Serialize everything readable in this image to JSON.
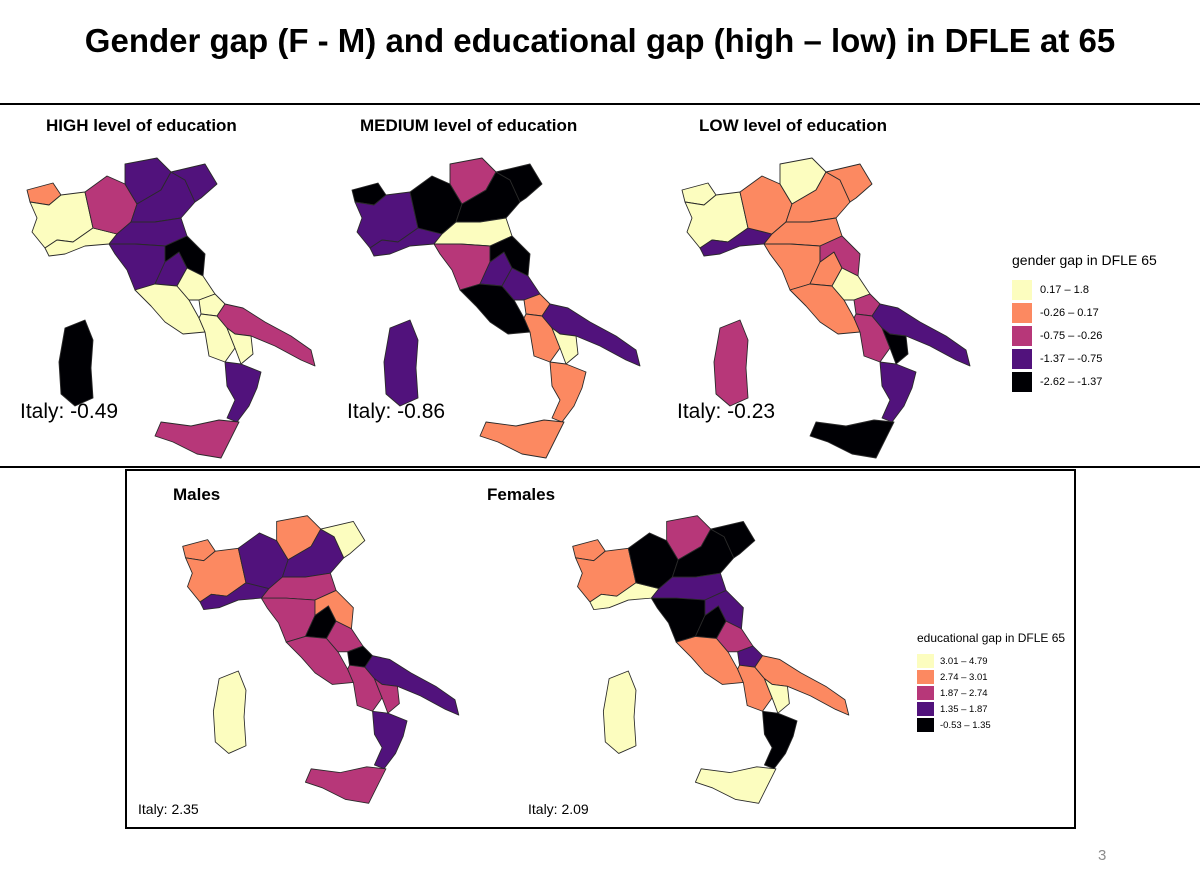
{
  "slide": {
    "title": "Gender gap (F - M) and educational gap (high – low) in DFLE at 65",
    "page_number": "3"
  },
  "colors": {
    "c1": "#fcfdbf",
    "c2": "#fc8961",
    "c3": "#b73779",
    "c4": "#51127c",
    "c5": "#000004"
  },
  "legends": {
    "gender": {
      "title": "gender gap in DFLE 65",
      "items": [
        {
          "label": "0.17 – 1.8",
          "color": "#fcfdbf"
        },
        {
          "label": "-0.26 – 0.17",
          "color": "#fc8961"
        },
        {
          "label": "-0.75 – -0.26",
          "color": "#b73779"
        },
        {
          "label": "-1.37 – -0.75",
          "color": "#51127c"
        },
        {
          "label": "-2.62 – -1.37",
          "color": "#000004"
        }
      ]
    },
    "education": {
      "title": "educational gap in DFLE 65",
      "items": [
        {
          "label": "3.01 – 4.79",
          "color": "#fcfdbf"
        },
        {
          "label": "2.74 – 3.01",
          "color": "#fc8961"
        },
        {
          "label": "1.87 – 2.74",
          "color": "#b73779"
        },
        {
          "label": "1.35 – 1.87",
          "color": "#51127c"
        },
        {
          "label": "-0.53 – 1.35",
          "color": "#000004"
        }
      ]
    }
  },
  "maps": [
    {
      "title": "HIGH level of education",
      "italy": "Italy: -0.49",
      "legend": "gender",
      "regions": {
        "valle": "c2",
        "piemonte": "c1",
        "liguria": "c1",
        "lombardia": "c3",
        "trentino": "c4",
        "veneto": "c4",
        "friuli": "c4",
        "emilia": "c4",
        "toscana": "c4",
        "umbria": "c4",
        "marche": "c5",
        "lazio": "c1",
        "abruzzo": "c1",
        "molise": "c1",
        "campania": "c1",
        "puglia": "c3",
        "basilicata": "c1",
        "calabria": "c4",
        "sicilia": "c3",
        "sardegna": "c5"
      }
    },
    {
      "title": "MEDIUM level of education",
      "italy": "Italy: -0.86",
      "legend": "gender",
      "regions": {
        "valle": "c5",
        "piemonte": "c4",
        "liguria": "c4",
        "lombardia": "c5",
        "trentino": "c3",
        "veneto": "c5",
        "friuli": "c5",
        "emilia": "c1",
        "toscana": "c3",
        "umbria": "c4",
        "marche": "c5",
        "lazio": "c5",
        "abruzzo": "c4",
        "molise": "c2",
        "campania": "c2",
        "puglia": "c4",
        "basilicata": "c1",
        "calabria": "c2",
        "sicilia": "c2",
        "sardegna": "c4"
      }
    },
    {
      "title": "LOW level of education",
      "italy": "Italy: -0.23",
      "legend": "gender",
      "regions": {
        "valle": "c1",
        "piemonte": "c1",
        "liguria": "c4",
        "lombardia": "c2",
        "trentino": "c1",
        "veneto": "c2",
        "friuli": "c2",
        "emilia": "c2",
        "toscana": "c2",
        "umbria": "c2",
        "marche": "c3",
        "lazio": "c2",
        "abruzzo": "c1",
        "molise": "c3",
        "campania": "c3",
        "puglia": "c4",
        "basilicata": "c5",
        "calabria": "c4",
        "sicilia": "c5",
        "sardegna": "c3"
      }
    },
    {
      "title": "Males",
      "italy": "Italy: 2.35",
      "legend": "education",
      "regions": {
        "valle": "c2",
        "piemonte": "c2",
        "liguria": "c4",
        "lombardia": "c4",
        "trentino": "c2",
        "veneto": "c4",
        "friuli": "c1",
        "emilia": "c3",
        "toscana": "c3",
        "umbria": "c5",
        "marche": "c2",
        "lazio": "c3",
        "abruzzo": "c3",
        "molise": "c5",
        "campania": "c3",
        "puglia": "c4",
        "basilicata": "c3",
        "calabria": "c4",
        "sicilia": "c3",
        "sardegna": "c1"
      }
    },
    {
      "title": "Females",
      "italy": "Italy: 2.09",
      "legend": "education",
      "regions": {
        "valle": "c2",
        "piemonte": "c2",
        "liguria": "c1",
        "lombardia": "c5",
        "trentino": "c3",
        "veneto": "c5",
        "friuli": "c5",
        "emilia": "c4",
        "toscana": "c5",
        "umbria": "c5",
        "marche": "c4",
        "lazio": "c2",
        "abruzzo": "c3",
        "molise": "c4",
        "campania": "c2",
        "puglia": "c2",
        "basilicata": "c1",
        "calabria": "c5",
        "sicilia": "c1",
        "sardegna": "c1"
      }
    }
  ]
}
